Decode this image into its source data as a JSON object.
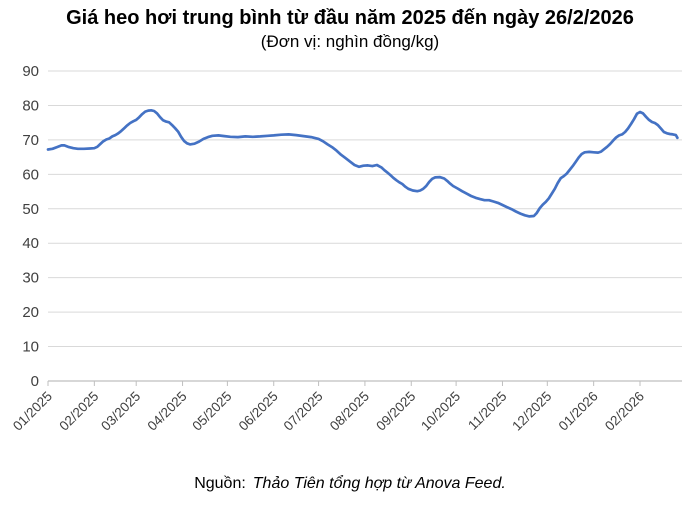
{
  "header": {
    "title": "Giá heo hơi trung bình từ đầu năm 2025 đến ngày 26/2/2026",
    "subtitle": "(Đơn vị: nghìn đồng/kg)"
  },
  "footer": {
    "source_label": "Nguồn:",
    "source_text": "Thảo Tiên tổng hợp từ Anova Feed."
  },
  "colors": {
    "line": "#4472C4",
    "gridline": "#D9D9D9",
    "axis": "#BFBFBF",
    "tick": "#BFBFBF",
    "axis_label": "#404040"
  },
  "chart_data": {
    "type": "line",
    "title": "Giá heo hơi trung bình từ đầu năm 2025 đến ngày 26/2/2026",
    "subtitle": "(Đơn vị: nghìn đồng/kg)",
    "xlabel": "",
    "ylabel": "",
    "unit": "nghìn đồng/kg",
    "grid": true,
    "legend": false,
    "ylim": [
      0,
      90
    ],
    "y_ticks": [
      0,
      10,
      20,
      30,
      40,
      50,
      60,
      70,
      80,
      90
    ],
    "x_unit": "days since 2025-01-01",
    "x_range_days": [
      0,
      424
    ],
    "x_tick_labels": [
      "01/2025",
      "02/2025",
      "03/2025",
      "04/2025",
      "05/2025",
      "06/2025",
      "07/2025",
      "08/2025",
      "09/2025",
      "10/2025",
      "11/2025",
      "12/2025",
      "01/2026",
      "02/2026"
    ],
    "x_tick_days": [
      0,
      31,
      59,
      90,
      120,
      151,
      181,
      212,
      243,
      273,
      304,
      334,
      365,
      396
    ],
    "series": [
      {
        "name": "Giá heo hơi trung bình (nghìn đồng/kg)",
        "color": "#4472C4",
        "points": [
          [
            0,
            67.2
          ],
          [
            3,
            67.4
          ],
          [
            6,
            67.9
          ],
          [
            9,
            68.4
          ],
          [
            11,
            68.4
          ],
          [
            14,
            67.9
          ],
          [
            17,
            67.6
          ],
          [
            20,
            67.4
          ],
          [
            24,
            67.4
          ],
          [
            28,
            67.5
          ],
          [
            31,
            67.6
          ],
          [
            33,
            68.0
          ],
          [
            35,
            68.8
          ],
          [
            37,
            69.6
          ],
          [
            39,
            70.1
          ],
          [
            41,
            70.4
          ],
          [
            43,
            71.0
          ],
          [
            45,
            71.4
          ],
          [
            47,
            71.9
          ],
          [
            49,
            72.6
          ],
          [
            51,
            73.4
          ],
          [
            53,
            74.2
          ],
          [
            55,
            74.9
          ],
          [
            57,
            75.4
          ],
          [
            59,
            75.8
          ],
          [
            61,
            76.6
          ],
          [
            63,
            77.5
          ],
          [
            65,
            78.2
          ],
          [
            67,
            78.5
          ],
          [
            69,
            78.6
          ],
          [
            71,
            78.4
          ],
          [
            73,
            77.7
          ],
          [
            75,
            76.6
          ],
          [
            77,
            75.7
          ],
          [
            79,
            75.3
          ],
          [
            81,
            75.1
          ],
          [
            83,
            74.3
          ],
          [
            85,
            73.4
          ],
          [
            87,
            72.4
          ],
          [
            89,
            70.9
          ],
          [
            91,
            69.7
          ],
          [
            93,
            69.0
          ],
          [
            95,
            68.7
          ],
          [
            98,
            68.9
          ],
          [
            101,
            69.5
          ],
          [
            104,
            70.3
          ],
          [
            107,
            70.8
          ],
          [
            110,
            71.2
          ],
          [
            114,
            71.3
          ],
          [
            118,
            71.1
          ],
          [
            122,
            70.9
          ],
          [
            127,
            70.8
          ],
          [
            132,
            71.0
          ],
          [
            137,
            70.9
          ],
          [
            142,
            71.0
          ],
          [
            147,
            71.2
          ],
          [
            151,
            71.3
          ],
          [
            156,
            71.5
          ],
          [
            161,
            71.6
          ],
          [
            166,
            71.4
          ],
          [
            171,
            71.1
          ],
          [
            176,
            70.8
          ],
          [
            181,
            70.3
          ],
          [
            184,
            69.6
          ],
          [
            187,
            68.7
          ],
          [
            190,
            67.9
          ],
          [
            193,
            66.9
          ],
          [
            196,
            65.7
          ],
          [
            199,
            64.7
          ],
          [
            202,
            63.7
          ],
          [
            205,
            62.7
          ],
          [
            208,
            62.2
          ],
          [
            211,
            62.5
          ],
          [
            214,
            62.6
          ],
          [
            217,
            62.4
          ],
          [
            220,
            62.7
          ],
          [
            223,
            62.0
          ],
          [
            225,
            61.2
          ],
          [
            227,
            60.5
          ],
          [
            229,
            59.8
          ],
          [
            231,
            59.0
          ],
          [
            233,
            58.3
          ],
          [
            235,
            57.7
          ],
          [
            237,
            57.2
          ],
          [
            239,
            56.4
          ],
          [
            241,
            55.8
          ],
          [
            244,
            55.3
          ],
          [
            247,
            55.1
          ],
          [
            249,
            55.3
          ],
          [
            251,
            55.8
          ],
          [
            253,
            56.6
          ],
          [
            255,
            57.8
          ],
          [
            257,
            58.7
          ],
          [
            259,
            59.1
          ],
          [
            262,
            59.2
          ],
          [
            265,
            58.8
          ],
          [
            267,
            58.1
          ],
          [
            269,
            57.3
          ],
          [
            271,
            56.6
          ],
          [
            274,
            55.9
          ],
          [
            277,
            55.1
          ],
          [
            280,
            54.4
          ],
          [
            283,
            53.7
          ],
          [
            286,
            53.2
          ],
          [
            289,
            52.8
          ],
          [
            292,
            52.5
          ],
          [
            295,
            52.5
          ],
          [
            298,
            52.1
          ],
          [
            301,
            51.7
          ],
          [
            304,
            51.1
          ],
          [
            307,
            50.5
          ],
          [
            310,
            49.9
          ],
          [
            313,
            49.2
          ],
          [
            316,
            48.6
          ],
          [
            319,
            48.1
          ],
          [
            322,
            47.8
          ],
          [
            325,
            47.9
          ],
          [
            327,
            48.8
          ],
          [
            329,
            50.2
          ],
          [
            331,
            51.2
          ],
          [
            333,
            52.0
          ],
          [
            335,
            53.0
          ],
          [
            337,
            54.4
          ],
          [
            339,
            55.8
          ],
          [
            341,
            57.5
          ],
          [
            343,
            58.9
          ],
          [
            345,
            59.5
          ],
          [
            347,
            60.2
          ],
          [
            349,
            61.3
          ],
          [
            351,
            62.4
          ],
          [
            353,
            63.6
          ],
          [
            355,
            64.9
          ],
          [
            357,
            65.9
          ],
          [
            359,
            66.4
          ],
          [
            362,
            66.5
          ],
          [
            365,
            66.4
          ],
          [
            368,
            66.3
          ],
          [
            370,
            66.6
          ],
          [
            372,
            67.3
          ],
          [
            374,
            68.0
          ],
          [
            376,
            68.8
          ],
          [
            378,
            69.8
          ],
          [
            380,
            70.7
          ],
          [
            382,
            71.3
          ],
          [
            384,
            71.6
          ],
          [
            386,
            72.3
          ],
          [
            388,
            73.3
          ],
          [
            390,
            74.6
          ],
          [
            392,
            76.0
          ],
          [
            394,
            77.6
          ],
          [
            396,
            78.1
          ],
          [
            398,
            77.7
          ],
          [
            400,
            76.7
          ],
          [
            402,
            75.8
          ],
          [
            404,
            75.2
          ],
          [
            406,
            74.9
          ],
          [
            408,
            74.3
          ],
          [
            410,
            73.3
          ],
          [
            412,
            72.3
          ],
          [
            414,
            71.9
          ],
          [
            416,
            71.7
          ],
          [
            418,
            71.6
          ],
          [
            420,
            71.4
          ],
          [
            421,
            70.6
          ]
        ]
      }
    ]
  }
}
